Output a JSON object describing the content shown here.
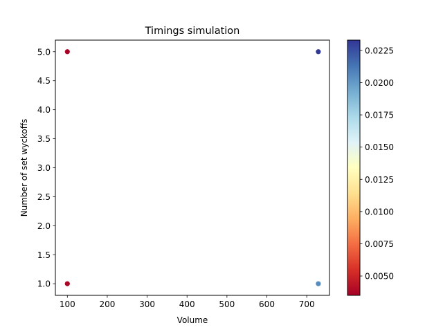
{
  "chart_data": {
    "type": "scatter",
    "title": "Timings simulation",
    "xlabel": "Volume",
    "ylabel": "Number of set wyckoffs",
    "xlim": [
      70,
      757
    ],
    "ylim": [
      0.8,
      5.2
    ],
    "xticks": [
      100,
      200,
      300,
      400,
      500,
      600,
      700
    ],
    "xtick_labels": [
      "100",
      "200",
      "300",
      "400",
      "500",
      "600",
      "700"
    ],
    "yticks": [
      1.0,
      1.5,
      2.0,
      2.5,
      3.0,
      3.5,
      4.0,
      4.5,
      5.0
    ],
    "ytick_labels": [
      "1.0",
      "1.5",
      "2.0",
      "2.5",
      "3.0",
      "3.5",
      "4.0",
      "4.5",
      "5.0"
    ],
    "grid": false,
    "points": [
      {
        "x": 100,
        "y": 5,
        "c": 0.0036
      },
      {
        "x": 100,
        "y": 1,
        "c": 0.0037
      },
      {
        "x": 729,
        "y": 5,
        "c": 0.0232
      },
      {
        "x": 729,
        "y": 1,
        "c": 0.0205
      }
    ],
    "colorbar": {
      "colormap": "RdYlBu",
      "range": [
        0.0035,
        0.0233
      ],
      "ticks": [
        0.005,
        0.0075,
        0.01,
        0.0125,
        0.015,
        0.0175,
        0.02,
        0.0225
      ],
      "tick_labels": [
        "0.0050",
        "0.0075",
        "0.0100",
        "0.0125",
        "0.0150",
        "0.0175",
        "0.0200",
        "0.0225"
      ],
      "colors": [
        "#a50026",
        "#d73027",
        "#f46d43",
        "#fdae61",
        "#fee090",
        "#ffffbf",
        "#e0f3f8",
        "#abd9e9",
        "#74add1",
        "#4575b4",
        "#313695"
      ]
    }
  }
}
